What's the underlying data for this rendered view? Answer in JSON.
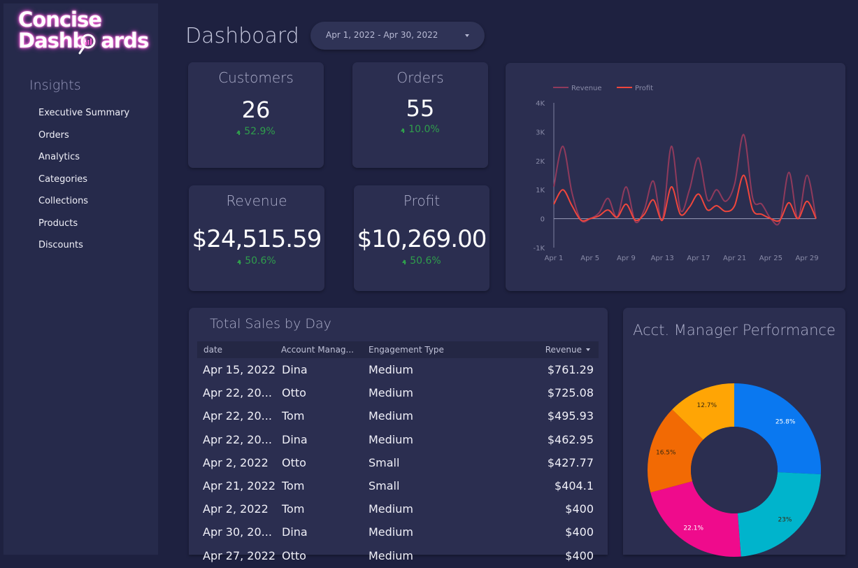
{
  "logo": {
    "line1": "Concise",
    "line2": "Dashb",
    "line3": "ards"
  },
  "nav": {
    "heading": "Insights",
    "items": [
      "Executive Summary",
      "Orders",
      "Analytics",
      "Categories",
      "Collections",
      "Products",
      "Discounts"
    ]
  },
  "header": {
    "title": "Dashboard",
    "date_range": "Apr 1, 2022 - Apr 30, 2022"
  },
  "kpis": {
    "customers": {
      "label": "Customers",
      "value": "26",
      "delta": "52.9%"
    },
    "orders": {
      "label": "Orders",
      "value": "55",
      "delta": "10.0%"
    },
    "revenue": {
      "label": "Revenue",
      "value": "$24,515.59",
      "delta": "50.6%"
    },
    "profit": {
      "label": "Profit",
      "value": "$10,269.00",
      "delta": "50.6%"
    }
  },
  "table": {
    "title": "Total Sales by Day",
    "columns": [
      "date",
      "Account Manag...",
      "Engagement Type",
      "Revenue"
    ],
    "rows": [
      [
        "Apr 15, 2022",
        "Dina",
        "Medium",
        "$761.29"
      ],
      [
        "Apr 22, 20...",
        "Otto",
        "Medium",
        "$725.08"
      ],
      [
        "Apr 22, 20...",
        "Tom",
        "Medium",
        "$495.93"
      ],
      [
        "Apr 22, 20...",
        "Dina",
        "Medium",
        "$462.95"
      ],
      [
        "Apr 2, 2022",
        "Otto",
        "Small",
        "$427.77"
      ],
      [
        "Apr 21, 2022",
        "Tom",
        "Small",
        "$404.1"
      ],
      [
        "Apr 2, 2022",
        "Tom",
        "Medium",
        "$400"
      ],
      [
        "Apr 30, 20...",
        "Dina",
        "Medium",
        "$400"
      ],
      [
        "Apr 27, 2022",
        "Otto",
        "Medium",
        "$400"
      ]
    ]
  },
  "colors": {
    "revenue": "#8f3a5c",
    "profit": "#f0463c",
    "pie": [
      "#0a78f0",
      "#00b4cc",
      "#ef0b8c",
      "#f26a04",
      "#ffa505"
    ]
  },
  "chart_data": [
    {
      "type": "line",
      "x": [
        "Apr 1",
        "Apr 2",
        "Apr 3",
        "Apr 4",
        "Apr 5",
        "Apr 6",
        "Apr 7",
        "Apr 8",
        "Apr 9",
        "Apr 10",
        "Apr 11",
        "Apr 12",
        "Apr 13",
        "Apr 14",
        "Apr 15",
        "Apr 16",
        "Apr 17",
        "Apr 18",
        "Apr 19",
        "Apr 20",
        "Apr 21",
        "Apr 22",
        "Apr 23",
        "Apr 24",
        "Apr 25",
        "Apr 26",
        "Apr 27",
        "Apr 28",
        "Apr 29",
        "Apr 30"
      ],
      "xticks": [
        "Apr 1",
        "Apr 5",
        "Apr 9",
        "Apr 13",
        "Apr 17",
        "Apr 21",
        "Apr 25",
        "Apr 29"
      ],
      "yticks": [
        "4K",
        "3K",
        "2K",
        "1K",
        "0",
        "-1K"
      ],
      "ylim": [
        -1000,
        4000
      ],
      "legend": "top-left",
      "series": [
        {
          "name": "Revenue",
          "values": [
            1100,
            2500,
            900,
            -50,
            0,
            200,
            700,
            50,
            1100,
            -100,
            300,
            1300,
            -50,
            2500,
            300,
            1000,
            2100,
            650,
            1000,
            600,
            1200,
            2900,
            700,
            500,
            0,
            -100,
            1600,
            0,
            1500,
            0
          ]
        },
        {
          "name": "Profit",
          "values": [
            500,
            1000,
            450,
            -50,
            0,
            100,
            300,
            50,
            500,
            -50,
            150,
            650,
            -50,
            1100,
            150,
            400,
            850,
            300,
            450,
            250,
            450,
            1500,
            300,
            150,
            0,
            -50,
            550,
            0,
            600,
            0
          ]
        }
      ]
    },
    {
      "type": "pie",
      "title": "Acct. Manager Performance",
      "values": [
        25.8,
        23.0,
        22.1,
        16.5,
        12.7
      ],
      "labels": [
        "25.8%",
        "23%",
        "22.1%",
        "16.5%",
        "12.7%"
      ]
    }
  ]
}
